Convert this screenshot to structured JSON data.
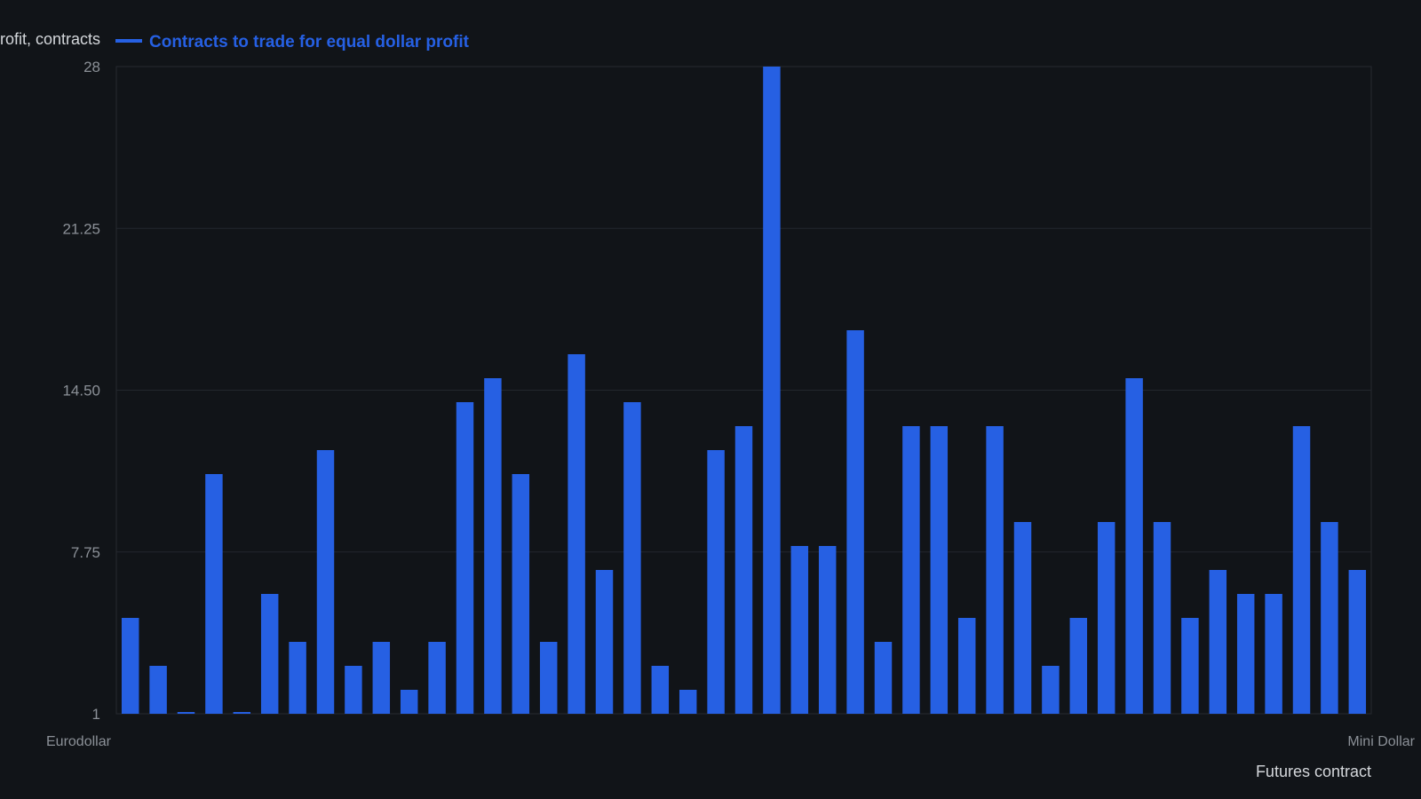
{
  "chart_data": {
    "type": "bar",
    "ylabel": "Contracts to trade for equal dollar profit, contracts",
    "xlabel": "Futures contract",
    "legend": {
      "entries": [
        "Contracts to trade for equal dollar profit"
      ],
      "placement": "top-left"
    },
    "ylim": [
      1,
      28
    ],
    "yticks": [
      "1",
      "7.75",
      "14.50",
      "21.25",
      "28"
    ],
    "grid": true,
    "colors": {
      "series": "#2660e3",
      "background": "#111418",
      "grid": "#23272d",
      "text": "#8b9097"
    },
    "first_category": "Eurodollar",
    "last_category": "Mini Dollar",
    "series": [
      {
        "name": "Contracts to trade for equal dollar profit",
        "values": [
          5,
          3,
          1,
          11,
          1,
          6,
          4,
          12,
          3,
          4,
          2,
          4,
          14,
          15,
          11,
          4,
          16,
          7,
          14,
          3,
          2,
          12,
          13,
          28,
          8,
          8,
          17,
          4,
          13,
          13,
          5,
          13,
          9,
          3,
          5,
          9,
          15,
          9,
          5,
          7,
          6,
          6,
          13,
          9,
          7
        ]
      }
    ]
  }
}
